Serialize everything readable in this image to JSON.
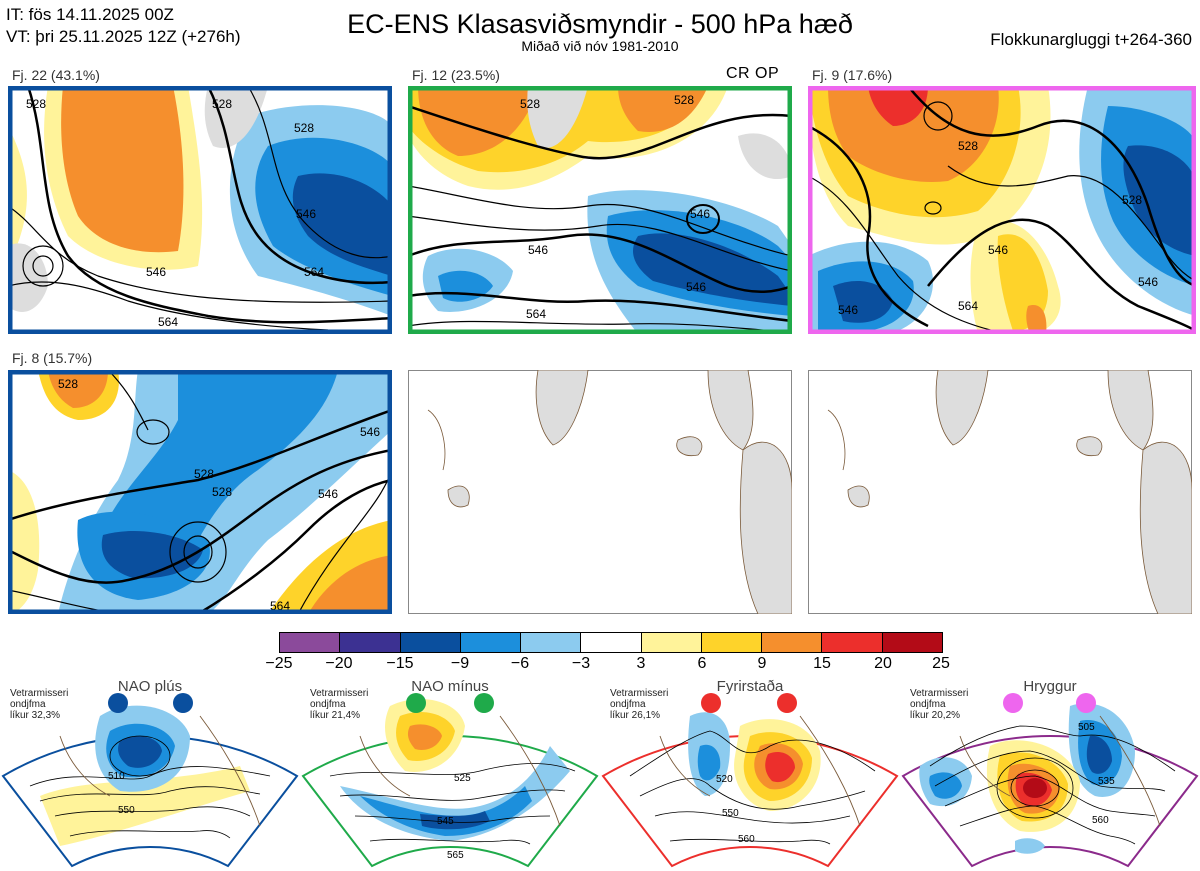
{
  "header": {
    "it_line": "IT: fös 14.11.2025 00Z",
    "vt_line": "VT: þri 25.11.2025 12Z  (+276h)",
    "title": "EC-ENS Klasasviðsmyndir - 500 hPa hæð",
    "subtitle": "Miðað við nóv 1981-2010",
    "window": "Flokkunargluggi t+264-360"
  },
  "clusters": [
    {
      "label": "Fj. 22 (43.1%)",
      "border_color": "#0a4f9e",
      "contours": [
        "528",
        "528",
        "546",
        "546",
        "528",
        "564",
        "564"
      ]
    },
    {
      "label": "Fj. 12 (23.5%)",
      "border_color": "#1faa4a",
      "badge": "CR OP",
      "contours": [
        "528",
        "528",
        "546",
        "546",
        "546",
        "564"
      ]
    },
    {
      "label": "Fj. 9 (17.6%)",
      "border_color": "#ee66ee",
      "contours": [
        "528",
        "528",
        "546",
        "546",
        "546",
        "564"
      ]
    },
    {
      "label": "Fj. 8 (15.7%)",
      "border_color": "#0a4f9e",
      "contours": [
        "528",
        "528",
        "528",
        "546",
        "546",
        "564"
      ]
    }
  ],
  "colorbar": {
    "ticks": [
      "−25",
      "−20",
      "−15",
      "−9",
      "−6",
      "−3",
      "3",
      "6",
      "9",
      "15",
      "20",
      "25"
    ],
    "colors": [
      "#8b4a9b",
      "#3c3192",
      "#0a4f9e",
      "#1c8fdc",
      "#8ccbef",
      "#ffffff",
      "#fff39a",
      "#fed32a",
      "#f58f2d",
      "#ec2f2c",
      "#b30b17"
    ]
  },
  "regimes": [
    {
      "title": "NAO plús",
      "info": [
        "Vetrarmisseri",
        "ondjfma",
        "líkur 32,3%"
      ],
      "dot_color": "#0a4f9e",
      "edge_color": "#0a4f9e",
      "contours": [
        "510",
        "550"
      ]
    },
    {
      "title": "NAO mínus",
      "info": [
        "Vetrarmisseri",
        "ondjfma",
        "líkur 21,4%"
      ],
      "dot_color": "#1faa4a",
      "edge_color": "#1faa4a",
      "contours": [
        "525",
        "545",
        "565"
      ]
    },
    {
      "title": "Fyrirstaða",
      "info": [
        "Vetrarmisseri",
        "ondjfma",
        "líkur 26,1%"
      ],
      "dot_color": "#ec2f2c",
      "edge_color": "#ec2f2c",
      "contours": [
        "520",
        "550",
        "560"
      ]
    },
    {
      "title": "Hryggur",
      "info": [
        "Vetrarmisseri",
        "ondjfma",
        "líkur 20,2%"
      ],
      "dot_color": "#ee66ee",
      "edge_color": "#8b2a8b",
      "contours": [
        "505",
        "535",
        "560"
      ]
    }
  ]
}
